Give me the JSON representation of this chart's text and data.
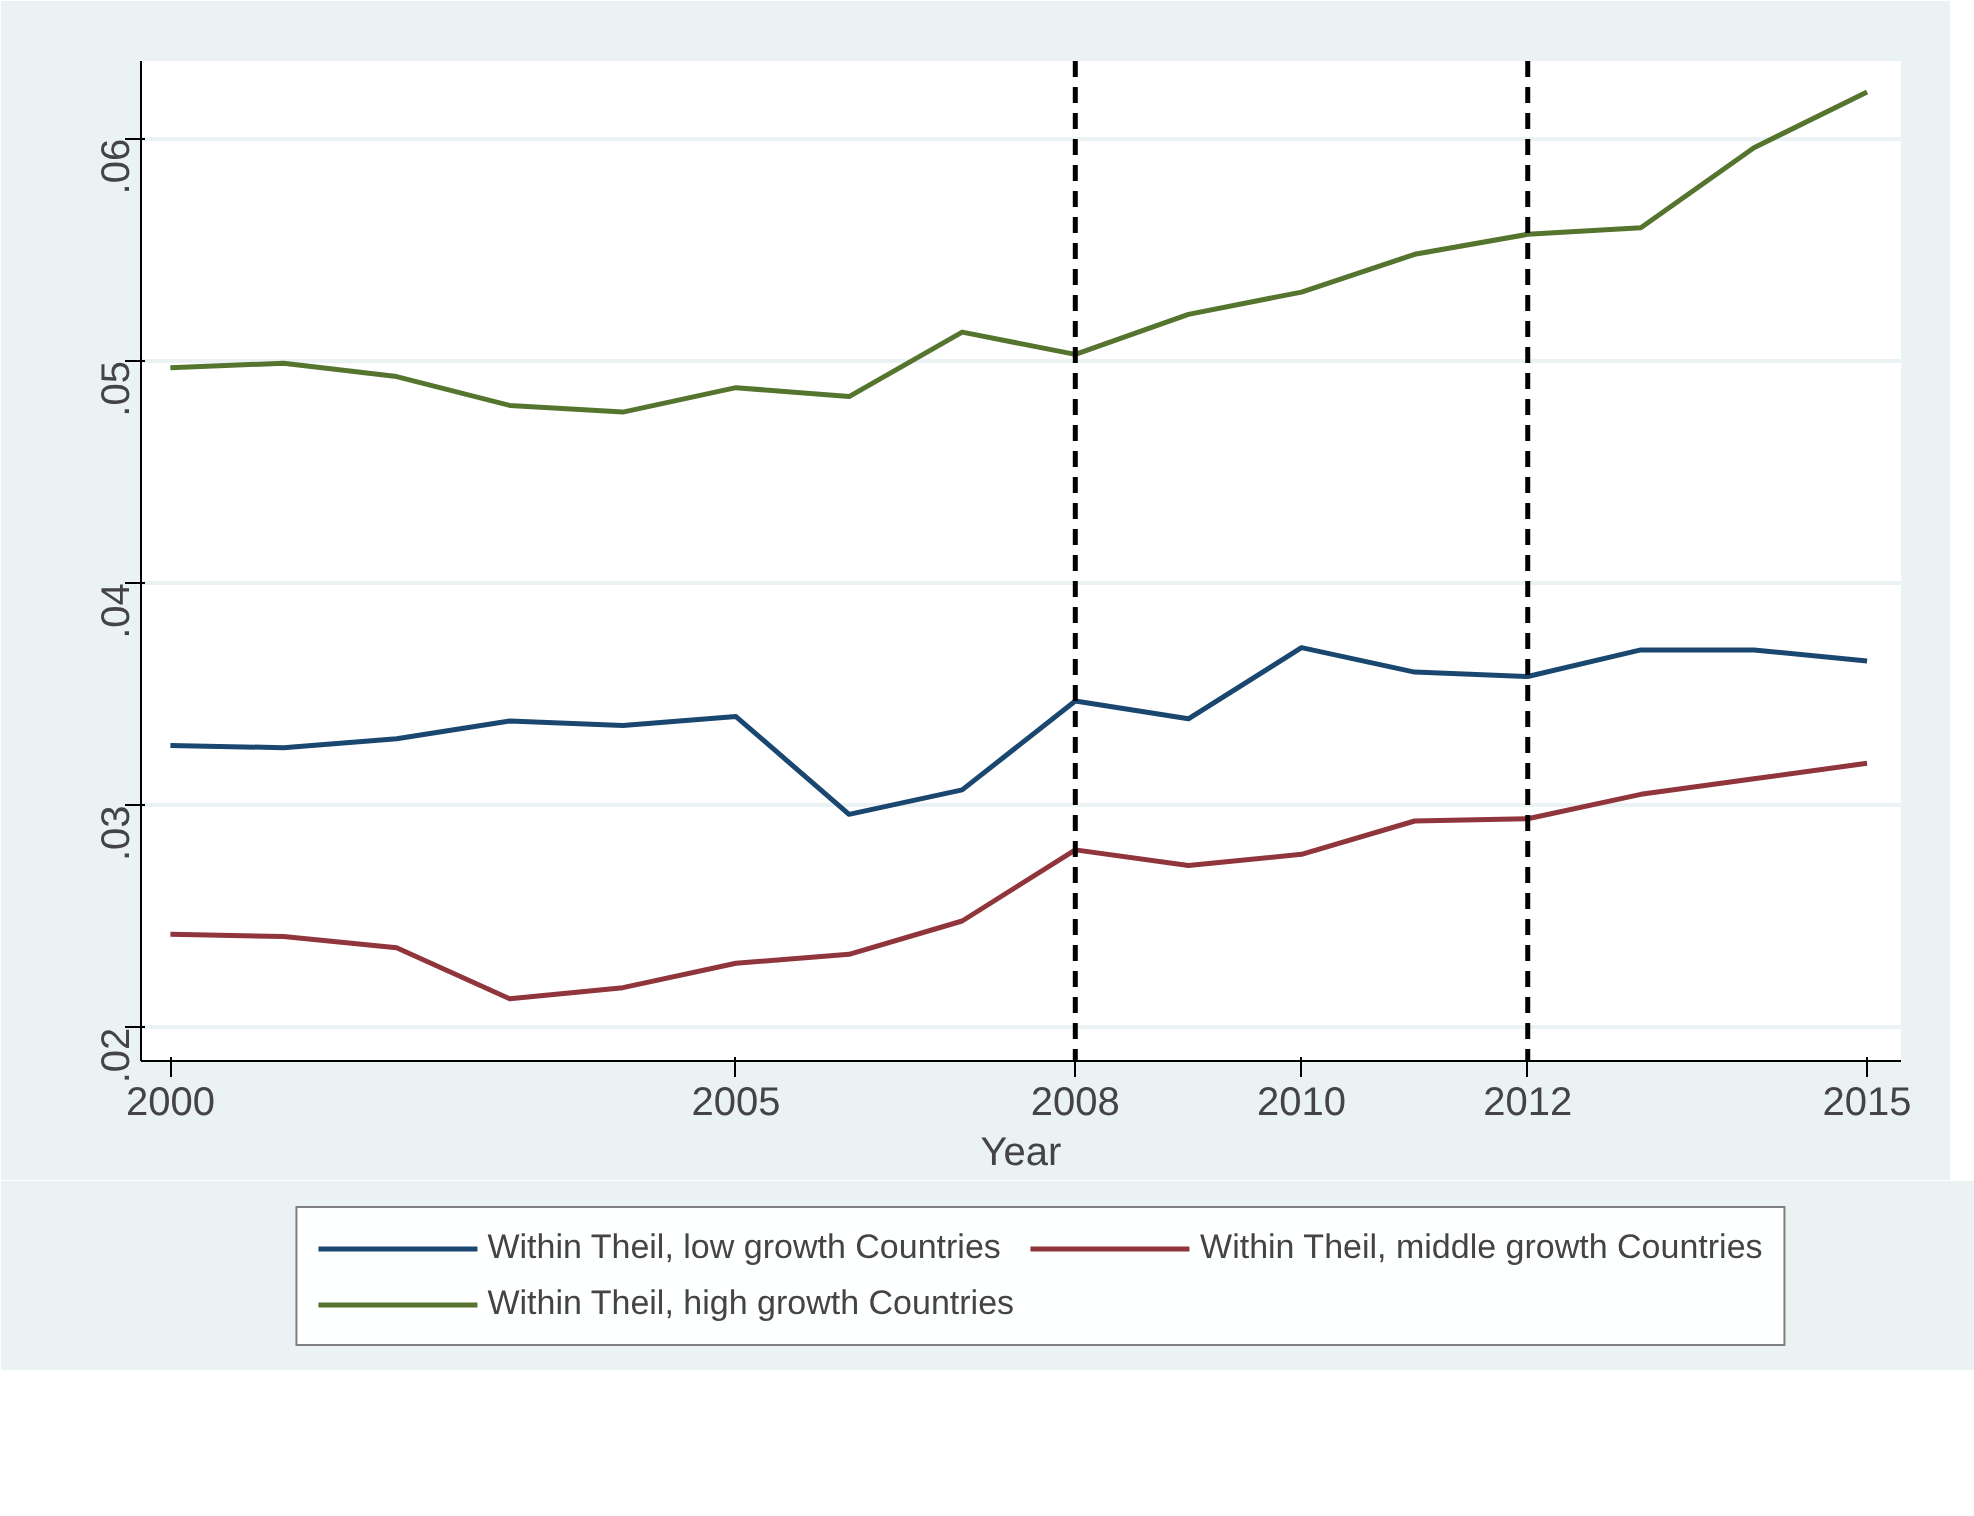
{
  "chart_data": {
    "type": "line",
    "xlabel": "Year",
    "x": [
      2000,
      2001,
      2002,
      2003,
      2004,
      2005,
      2006,
      2007,
      2008,
      2009,
      2010,
      2011,
      2012,
      2013,
      2014,
      2015
    ],
    "series": [
      {
        "name": "Within Theil, low growth Countries",
        "color": "#1a476f",
        "values": [
          0.0327,
          0.0326,
          0.033,
          0.0338,
          0.0336,
          0.034,
          0.0296,
          0.0307,
          0.0347,
          0.0339,
          0.0371,
          0.036,
          0.0358,
          0.037,
          0.037,
          0.0365
        ]
      },
      {
        "name": "Within Theil, middle growth Countries",
        "color": "#90353b",
        "values": [
          0.0242,
          0.0241,
          0.0236,
          0.0213,
          0.0218,
          0.0229,
          0.0233,
          0.0248,
          0.028,
          0.0273,
          0.0278,
          0.0293,
          0.0294,
          0.0305,
          0.0312,
          0.0319
        ]
      },
      {
        "name": "Within Theil, high growth Countries",
        "color": "#55752f",
        "values": [
          0.0497,
          0.0499,
          0.0493,
          0.048,
          0.0477,
          0.0488,
          0.0484,
          0.0513,
          0.0503,
          0.0521,
          0.0531,
          0.0548,
          0.0557,
          0.056,
          0.0596,
          0.0621
        ]
      }
    ],
    "xlim": [
      1999.74,
      2015.3
    ],
    "ylim": [
      0.0185,
      0.0635
    ],
    "xticks": [
      2000,
      2005,
      2008,
      2010,
      2012,
      2015
    ],
    "yticks": [
      {
        "value": 0.02,
        "label": ".02"
      },
      {
        "value": 0.03,
        "label": ".03"
      },
      {
        "value": 0.04,
        "label": ".04"
      },
      {
        "value": 0.05,
        "label": ".05"
      },
      {
        "value": 0.06,
        "label": ".06"
      }
    ],
    "ref_lines": [
      {
        "axis": "x",
        "value": 2008,
        "color": "#000000",
        "line_style": "dashed"
      },
      {
        "axis": "x",
        "value": 2012,
        "color": "#000000",
        "line_style": "dashed"
      }
    ],
    "grid": "y",
    "legend": "bottom",
    "line_style": "solid"
  }
}
